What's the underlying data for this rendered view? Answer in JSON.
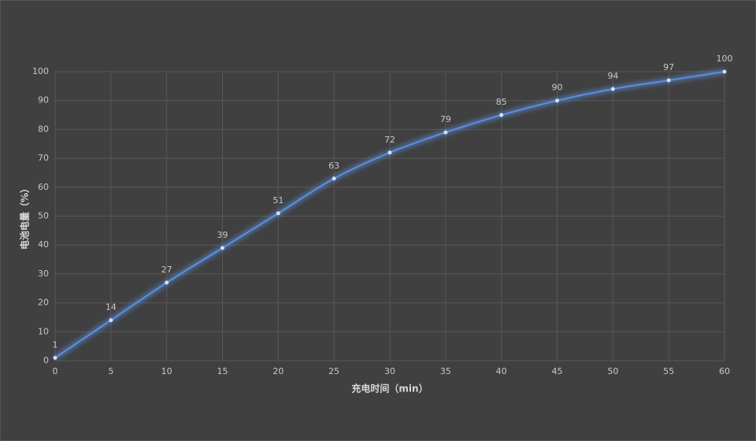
{
  "chart_data": {
    "type": "line",
    "x_label": "充电时间（min）",
    "y_label": "电池电量（%）",
    "x": [
      0,
      5,
      10,
      15,
      20,
      25,
      30,
      35,
      40,
      45,
      50,
      55,
      60
    ],
    "series": [
      {
        "name": "电池电量",
        "color": "#5b8fde",
        "values": [
          1,
          14,
          27,
          39,
          51,
          63,
          72,
          79,
          85,
          90,
          94,
          97,
          100
        ]
      }
    ],
    "xlim": [
      0,
      60
    ],
    "xticks": [
      0,
      5,
      10,
      15,
      20,
      25,
      30,
      35,
      40,
      45,
      50,
      55,
      60
    ],
    "ylim": [
      0,
      100
    ],
    "yticks": [
      0,
      10,
      20,
      30,
      40,
      50,
      60,
      70,
      80,
      90,
      100
    ],
    "grid": true
  }
}
